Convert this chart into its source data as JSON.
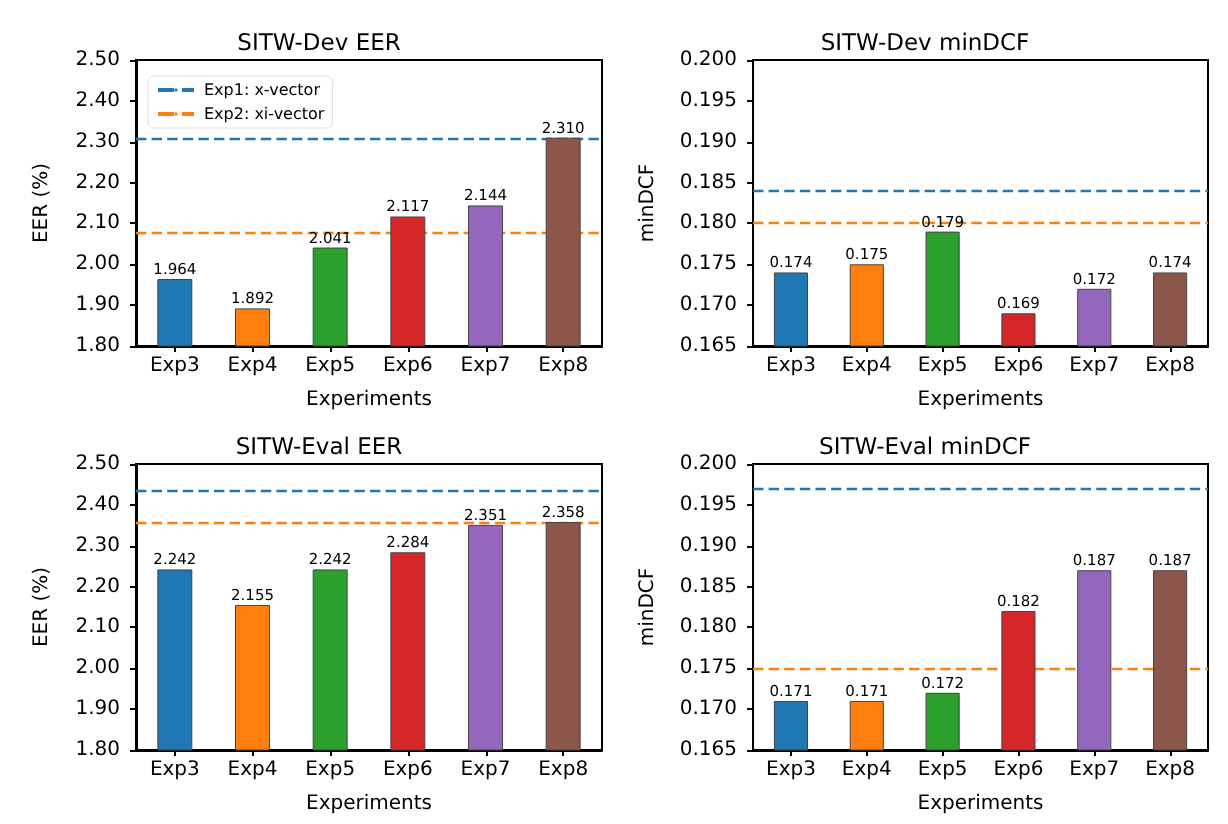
{
  "chart_data": [
    {
      "type": "bar",
      "title": "SITW-Dev EER",
      "xlabel": "Experiments",
      "ylabel": "EER (%)",
      "categories": [
        "Exp3",
        "Exp4",
        "Exp5",
        "Exp6",
        "Exp7",
        "Exp8"
      ],
      "values": [
        1.964,
        1.892,
        2.041,
        2.117,
        2.144,
        2.31
      ],
      "value_labels": [
        "1.964",
        "1.892",
        "2.041",
        "2.117",
        "2.144",
        "2.310"
      ],
      "colors": [
        "#1f77b4",
        "#ff7f0e",
        "#2ca02c",
        "#d62728",
        "#9467bd",
        "#8c564b"
      ],
      "ylim": [
        1.8,
        2.5
      ],
      "yticks": [
        {
          "value": 1.8,
          "label": "1.80"
        },
        {
          "value": 1.9,
          "label": "1.90"
        },
        {
          "value": 2.0,
          "label": "2.00"
        },
        {
          "value": 2.1,
          "label": "2.10"
        },
        {
          "value": 2.2,
          "label": "2.20"
        },
        {
          "value": 2.3,
          "label": "2.30"
        },
        {
          "value": 2.4,
          "label": "2.40"
        },
        {
          "value": 2.5,
          "label": "2.50"
        }
      ],
      "ref_lines": [
        {
          "axis": "y",
          "value": 2.31,
          "label": "Exp1: x-vector",
          "color": "#1f77b4",
          "line_style": "dashed"
        },
        {
          "axis": "y",
          "value": 2.08,
          "label": "Exp2: xi-vector",
          "color": "#ff7f0e",
          "line_style": "dashed"
        }
      ],
      "legend": "top left",
      "grid": false
    },
    {
      "type": "bar",
      "title": "SITW-Dev minDCF",
      "xlabel": "Experiments",
      "ylabel": "minDCF",
      "categories": [
        "Exp3",
        "Exp4",
        "Exp5",
        "Exp6",
        "Exp7",
        "Exp8"
      ],
      "values": [
        0.174,
        0.175,
        0.179,
        0.169,
        0.172,
        0.174
      ],
      "value_labels": [
        "0.174",
        "0.175",
        "0.179",
        "0.169",
        "0.172",
        "0.174"
      ],
      "colors": [
        "#1f77b4",
        "#ff7f0e",
        "#2ca02c",
        "#d62728",
        "#9467bd",
        "#8c564b"
      ],
      "ylim": [
        0.165,
        0.2
      ],
      "yticks": [
        0.165,
        {
          "value": 0.17,
          "label": "0.170"
        },
        0.175,
        {
          "value": 0.18,
          "label": "0.180"
        },
        0.185,
        {
          "value": 0.19,
          "label": "0.190"
        },
        0.195,
        {
          "value": 0.2,
          "label": "0.200"
        }
      ],
      "ref_lines": [
        {
          "axis": "y",
          "value": 0.184,
          "color": "#1f77b4",
          "line_style": "dashed"
        },
        {
          "axis": "y",
          "value": 0.18,
          "color": "#ff7f0e",
          "line_style": "dashed"
        }
      ],
      "grid": false
    },
    {
      "type": "bar",
      "title": "SITW-Eval EER",
      "xlabel": "Experiments",
      "ylabel": "EER (%)",
      "categories": [
        "Exp3",
        "Exp4",
        "Exp5",
        "Exp6",
        "Exp7",
        "Exp8"
      ],
      "values": [
        2.242,
        2.155,
        2.242,
        2.284,
        2.351,
        2.358
      ],
      "value_labels": [
        "2.242",
        "2.155",
        "2.242",
        "2.284",
        "2.351",
        "2.358"
      ],
      "colors": [
        "#1f77b4",
        "#ff7f0e",
        "#2ca02c",
        "#d62728",
        "#9467bd",
        "#8c564b"
      ],
      "ylim": [
        1.8,
        2.5
      ],
      "yticks": [
        {
          "value": 1.8,
          "label": "1.80"
        },
        {
          "value": 1.9,
          "label": "1.90"
        },
        {
          "value": 2.0,
          "label": "2.00"
        },
        {
          "value": 2.1,
          "label": "2.10"
        },
        {
          "value": 2.2,
          "label": "2.20"
        },
        {
          "value": 2.3,
          "label": "2.30"
        },
        {
          "value": 2.4,
          "label": "2.40"
        },
        {
          "value": 2.5,
          "label": "2.50"
        }
      ],
      "ref_lines": [
        {
          "axis": "y",
          "value": 2.433,
          "color": "#1f77b4",
          "line_style": "dashed"
        },
        {
          "axis": "y",
          "value": 2.357,
          "color": "#ff7f0e",
          "line_style": "dashed"
        }
      ],
      "grid": false
    },
    {
      "type": "bar",
      "title": "SITW-Eval minDCF",
      "xlabel": "Experiments",
      "ylabel": "minDCF",
      "categories": [
        "Exp3",
        "Exp4",
        "Exp5",
        "Exp6",
        "Exp7",
        "Exp8"
      ],
      "values": [
        0.171,
        0.171,
        0.172,
        0.182,
        0.187,
        0.187
      ],
      "value_labels": [
        "0.171",
        "0.171",
        "0.172",
        "0.182",
        "0.187",
        "0.187"
      ],
      "colors": [
        "#1f77b4",
        "#ff7f0e",
        "#2ca02c",
        "#d62728",
        "#9467bd",
        "#8c564b"
      ],
      "ylim": [
        0.165,
        0.2
      ],
      "yticks": [
        0.165,
        {
          "value": 0.17,
          "label": "0.170"
        },
        0.175,
        {
          "value": 0.18,
          "label": "0.180"
        },
        0.185,
        {
          "value": 0.19,
          "label": "0.190"
        },
        0.195,
        {
          "value": 0.2,
          "label": "0.200"
        }
      ],
      "ref_lines": [
        {
          "axis": "y",
          "value": 0.197,
          "color": "#1f77b4",
          "line_style": "dashed"
        },
        {
          "axis": "y",
          "value": 0.175,
          "color": "#ff7f0e",
          "line_style": "dashed"
        }
      ],
      "grid": false
    }
  ]
}
